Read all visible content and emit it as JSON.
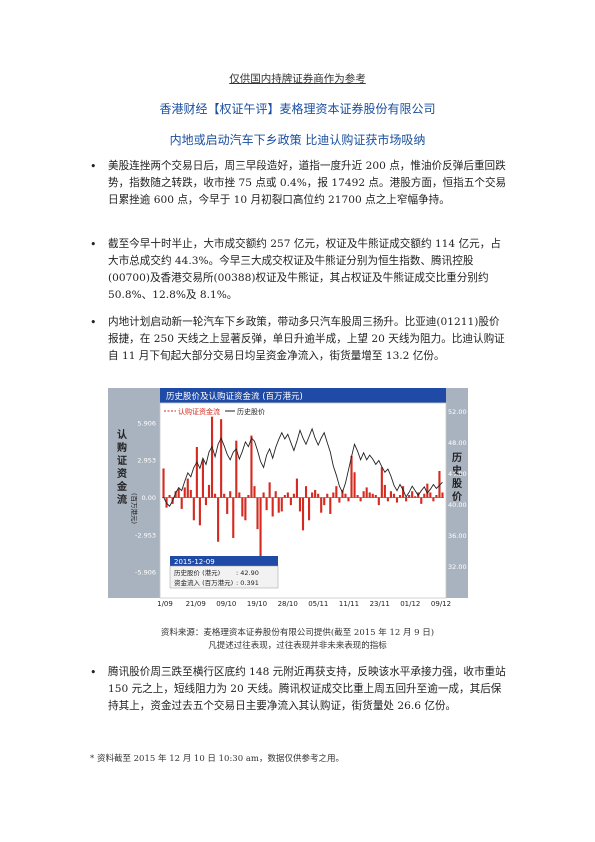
{
  "header": {
    "disclaimer": "仅供国内持牌证券商作为参考",
    "company": "香港财经【权证午评】麦格理资本证券股份有限公司",
    "headline": "内地或启动汽车下乡政策 比迪认购证获市场吸纳"
  },
  "paragraphs": [
    "美股连挫两个交易日后，周三早段造好，道指一度升近 200 点，惟油价反弹后重回跌势，指数随之转跌，收市挫 75 点或 0.4%，报 17492 点。港股方面，恒指五个交易日累挫逾 600 点，今早于 10 月初裂口高位约 21700 点之上窄幅争持。",
    "截至今早十时半止，大市成交额约 257 亿元，权证及牛熊证成交额约 114 亿元，占大市总成交约 44.3%。今早三大成交权证及牛熊证分别为恒生指数、腾讯控股(00700)及香港交易所(00388)权证及牛熊证，其占权证及牛熊证成交比重分别约 50.8%、12.8%及 8.1%。",
    "内地计划启动新一轮汽车下乡政策，带动多只汽车股周三扬升。比亚迪(01211)股价报捷，在 250 天线之上显著反弹，单日升逾半成，上望 20 天线为阻力。比迪认购证自 11 月下旬起大部分交易日均呈资金净流入，街货量增至 13.2 亿份。",
    "腾讯股价周三跌至横行区底约 148 元附近再获支持，反映该水平承接力强，收市重站 150 元之上，短线阻力为 20 天线。腾讯权证成交比重上周五回升至逾一成，其后保持其上，资金过去五个交易日主要净流入其认购证，街货量处 26.6 亿份。"
  ],
  "chart_data": {
    "type": "bar",
    "title": "历史股价及认购证资金流 (百万港元)",
    "legend": [
      "认购证资金流",
      "历史股价"
    ],
    "ylabel": "认购证资金流",
    "ylabel_unit": "(百万港元)",
    "y2label": "历史股价",
    "y_ticks": [
      "5.906",
      "2.953",
      "0.00",
      "-2.953",
      "-5.906"
    ],
    "y2_ticks": [
      "52.00",
      "48.00",
      "44.00",
      "40.00",
      "36.00",
      "32.00"
    ],
    "x_ticks": [
      "1/09",
      "21/09",
      "09/10",
      "19/10",
      "28/10",
      "05/11",
      "11/11",
      "23/11",
      "01/12",
      "09/12"
    ],
    "ylim": [
      -7,
      7.4
    ],
    "y2lim": [
      29.5,
      53
    ],
    "values": [
      2.3,
      -0.8,
      0.2,
      -0.5,
      0.5,
      0.7,
      -0.9,
      0.8,
      1.5,
      0.6,
      -1.8,
      4.0,
      -2.2,
      3.0,
      -0.6,
      1.0,
      6.4,
      0.3,
      -3.5,
      6.2,
      0.3,
      -1.3,
      0.5,
      -3.2,
      4.5,
      0.4,
      -1.5,
      -1.8,
      0.2,
      4.9,
      0.9,
      -2.5,
      -5.9,
      0.4,
      -1.0,
      1.2,
      -1.5,
      0.5,
      -1.2,
      -1.1,
      0.2,
      0.4,
      -0.6,
      0.3,
      1.5,
      -1.1,
      -2.6,
      0.9,
      -1.8,
      0.4,
      0.6,
      0.3,
      -1.2,
      -0.6,
      0.3,
      -1.3,
      0.4,
      0.9,
      -0.4,
      0.6,
      0.3,
      -0.3,
      3.3,
      2.0,
      0.2,
      -0.3,
      0.5,
      0.8,
      0.4,
      0.3,
      0.2,
      -0.6,
      2.4,
      1.0,
      -0.3,
      0.5,
      0.3,
      -0.4,
      0.2,
      0.9,
      -0.3,
      0.2,
      0.5,
      0.1,
      0.4,
      -0.5,
      0.3,
      1.1,
      0.4,
      -0.3,
      0.2,
      2.1,
      0.4
    ],
    "price": [
      41.0,
      40.2,
      39.8,
      40.5,
      41.5,
      42.2,
      41.8,
      43.0,
      44.1,
      43.6,
      44.8,
      45.5,
      44.7,
      46.0,
      45.2,
      46.8,
      47.5,
      46.2,
      47.8,
      48.6,
      47.6,
      46.5,
      45.8,
      46.8,
      47.2,
      45.9,
      46.9,
      48.1,
      47.5,
      48.6,
      48.2,
      47.0,
      45.6,
      44.8,
      46.4,
      47.2,
      46.0,
      47.4,
      48.4,
      49.3,
      48.5,
      49.1,
      48.0,
      47.0,
      48.2,
      49.6,
      48.6,
      47.8,
      48.8,
      49.8,
      48.6,
      47.7,
      48.6,
      49.3,
      48.0,
      46.8,
      45.0,
      43.8,
      42.4,
      41.6,
      42.8,
      44.5,
      46.2,
      47.8,
      46.9,
      45.8,
      46.7,
      45.8,
      46.4,
      45.9,
      45.2,
      45.7,
      44.9,
      44.2,
      44.6,
      43.7,
      42.5,
      41.8,
      42.6,
      41.9,
      41.0,
      41.6,
      42.4,
      41.8,
      41.2,
      41.8,
      42.3,
      41.5,
      42.0,
      42.6,
      42.1,
      42.5,
      42.9
    ],
    "tooltip": {
      "date": "2015-12-09",
      "price_label": "历史股价 (港元)",
      "price_value": ": 42.90",
      "flow_label": "资金流入 (百万港元)",
      "flow_value": ": 0.391"
    },
    "colors": {
      "bars": "#d42a20",
      "line": "#222222",
      "header": "#1f4aa6",
      "axisband": "#a9b3bf"
    }
  },
  "source": {
    "line1": "资料来源：麦格理资本证券股份有限公司提供(截至 2015 年 12 月 9 日)",
    "line2": "凡提述过往表现，过往表现并非未来表现的指标"
  },
  "footnote": "* 资料截至 2015 年 12 月 10 日 10:30 am，数据仅供参考之用。"
}
